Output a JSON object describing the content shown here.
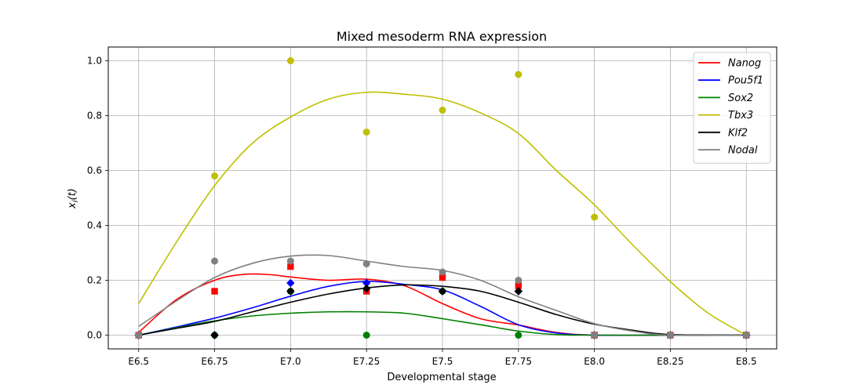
{
  "chart_data": {
    "type": "line",
    "title": "Mixed mesoderm RNA expression",
    "xlabel": "Developmental stage",
    "ylabel": "x_i(t)",
    "x_categories": [
      "E6.5",
      "E6.75",
      "E7.0",
      "E7.25",
      "E7.5",
      "E7.75",
      "E8.0",
      "E8.25",
      "E8.5"
    ],
    "ylim": [
      -0.05,
      1.05
    ],
    "yticks": [
      0.0,
      0.2,
      0.4,
      0.6,
      0.8,
      1.0
    ],
    "ytick_labels": [
      "0.0",
      "0.2",
      "0.4",
      "0.6",
      "0.8",
      "1.0"
    ],
    "grid": true,
    "legend_position": "top-right",
    "series": [
      {
        "name": "Nanog",
        "color": "#ff0000",
        "marker": "square",
        "points": [
          [
            0,
            0.0
          ],
          [
            1,
            0.16
          ],
          [
            2,
            0.25
          ],
          [
            3,
            0.16
          ],
          [
            4,
            0.21
          ],
          [
            5,
            0.18
          ],
          [
            6,
            0.0
          ],
          [
            7,
            0.0
          ],
          [
            8,
            0.0
          ]
        ],
        "curve": [
          [
            0,
            0.01
          ],
          [
            0.5,
            0.13
          ],
          [
            1,
            0.2
          ],
          [
            1.4,
            0.222
          ],
          [
            1.75,
            0.22
          ],
          [
            2,
            0.212
          ],
          [
            2.5,
            0.2
          ],
          [
            3,
            0.204
          ],
          [
            3.5,
            0.18
          ],
          [
            4,
            0.115
          ],
          [
            4.5,
            0.06
          ],
          [
            5,
            0.037
          ],
          [
            5.5,
            0.01
          ],
          [
            6,
            0.0
          ],
          [
            7,
            0.0
          ],
          [
            8,
            0.0
          ]
        ]
      },
      {
        "name": "Pou5f1",
        "color": "#0000ff",
        "marker": "diamond",
        "points": [
          [
            0,
            0.0
          ],
          [
            1,
            0.0
          ],
          [
            2,
            0.19
          ],
          [
            3,
            0.19
          ],
          [
            4,
            0.16
          ],
          [
            5,
            0.16
          ],
          [
            6,
            0.0
          ],
          [
            7,
            0.0
          ],
          [
            8,
            0.0
          ]
        ],
        "curve": [
          [
            0,
            0.0
          ],
          [
            0.5,
            0.03
          ],
          [
            1,
            0.062
          ],
          [
            1.5,
            0.1
          ],
          [
            2,
            0.142
          ],
          [
            2.5,
            0.178
          ],
          [
            3,
            0.196
          ],
          [
            3.5,
            0.185
          ],
          [
            4,
            0.165
          ],
          [
            4.5,
            0.105
          ],
          [
            5,
            0.038
          ],
          [
            5.5,
            0.008
          ],
          [
            6,
            0.0
          ],
          [
            7,
            0.0
          ],
          [
            8,
            0.0
          ]
        ]
      },
      {
        "name": "Sox2",
        "color": "#008000",
        "marker": "circle",
        "points": [
          [
            0,
            0.0
          ],
          [
            1,
            0.0
          ],
          [
            2,
            0.16
          ],
          [
            3,
            0.0
          ],
          [
            4,
            0.16
          ],
          [
            5,
            0.0
          ],
          [
            6,
            0.0
          ],
          [
            7,
            0.0
          ],
          [
            8,
            0.0
          ]
        ],
        "curve": [
          [
            0,
            0.0
          ],
          [
            0.5,
            0.027
          ],
          [
            1,
            0.052
          ],
          [
            1.5,
            0.07
          ],
          [
            2,
            0.08
          ],
          [
            2.5,
            0.085
          ],
          [
            3,
            0.085
          ],
          [
            3.5,
            0.08
          ],
          [
            4,
            0.06
          ],
          [
            4.5,
            0.038
          ],
          [
            5,
            0.015
          ],
          [
            5.5,
            0.002
          ],
          [
            6,
            0.0
          ],
          [
            7,
            0.0
          ],
          [
            8,
            0.0
          ]
        ]
      },
      {
        "name": "Tbx3",
        "color": "#bfbf00",
        "marker": "circle",
        "points": [
          [
            0,
            0.0
          ],
          [
            1,
            0.58
          ],
          [
            2,
            1.0
          ],
          [
            3,
            0.74
          ],
          [
            4,
            0.82
          ],
          [
            5,
            0.95
          ],
          [
            6,
            0.43
          ],
          [
            7,
            0.0
          ],
          [
            8,
            0.0
          ]
        ],
        "curve": [
          [
            0,
            0.115
          ],
          [
            0.5,
            0.34
          ],
          [
            1,
            0.545
          ],
          [
            1.5,
            0.7
          ],
          [
            2,
            0.795
          ],
          [
            2.5,
            0.86
          ],
          [
            3,
            0.885
          ],
          [
            3.5,
            0.878
          ],
          [
            4,
            0.86
          ],
          [
            4.5,
            0.81
          ],
          [
            5,
            0.735
          ],
          [
            5.5,
            0.6
          ],
          [
            6,
            0.475
          ],
          [
            6.5,
            0.33
          ],
          [
            7,
            0.195
          ],
          [
            7.5,
            0.08
          ],
          [
            8,
            0.0
          ]
        ]
      },
      {
        "name": "Klf2",
        "color": "#000000",
        "marker": "diamond",
        "points": [
          [
            0,
            0.0
          ],
          [
            1,
            0.0
          ],
          [
            2,
            0.16
          ],
          [
            3,
            0.17
          ],
          [
            4,
            0.16
          ],
          [
            5,
            0.16
          ],
          [
            6,
            0.0
          ],
          [
            7,
            0.0
          ],
          [
            8,
            0.0
          ]
        ],
        "curve": [
          [
            0,
            0.0
          ],
          [
            0.5,
            0.025
          ],
          [
            1,
            0.05
          ],
          [
            1.5,
            0.085
          ],
          [
            2,
            0.12
          ],
          [
            2.5,
            0.15
          ],
          [
            3,
            0.172
          ],
          [
            3.5,
            0.183
          ],
          [
            4,
            0.178
          ],
          [
            4.5,
            0.16
          ],
          [
            5,
            0.12
          ],
          [
            5.5,
            0.075
          ],
          [
            6,
            0.04
          ],
          [
            6.5,
            0.018
          ],
          [
            7,
            0.002
          ],
          [
            8,
            0.0
          ]
        ]
      },
      {
        "name": "Nodal",
        "color": "#808080",
        "marker": "circle",
        "points": [
          [
            0,
            0.0
          ],
          [
            1,
            0.27
          ],
          [
            2,
            0.27
          ],
          [
            3,
            0.26
          ],
          [
            4,
            0.23
          ],
          [
            5,
            0.2
          ],
          [
            6,
            0.0
          ],
          [
            7,
            0.0
          ],
          [
            8,
            0.0
          ]
        ],
        "curve": [
          [
            0,
            0.032
          ],
          [
            0.5,
            0.125
          ],
          [
            1,
            0.21
          ],
          [
            1.5,
            0.262
          ],
          [
            2,
            0.288
          ],
          [
            2.5,
            0.29
          ],
          [
            3,
            0.27
          ],
          [
            3.5,
            0.25
          ],
          [
            4,
            0.236
          ],
          [
            4.5,
            0.2
          ],
          [
            5,
            0.14
          ],
          [
            5.5,
            0.09
          ],
          [
            6,
            0.042
          ],
          [
            6.5,
            0.015
          ],
          [
            7,
            0.0
          ],
          [
            8,
            0.0
          ]
        ]
      }
    ]
  }
}
